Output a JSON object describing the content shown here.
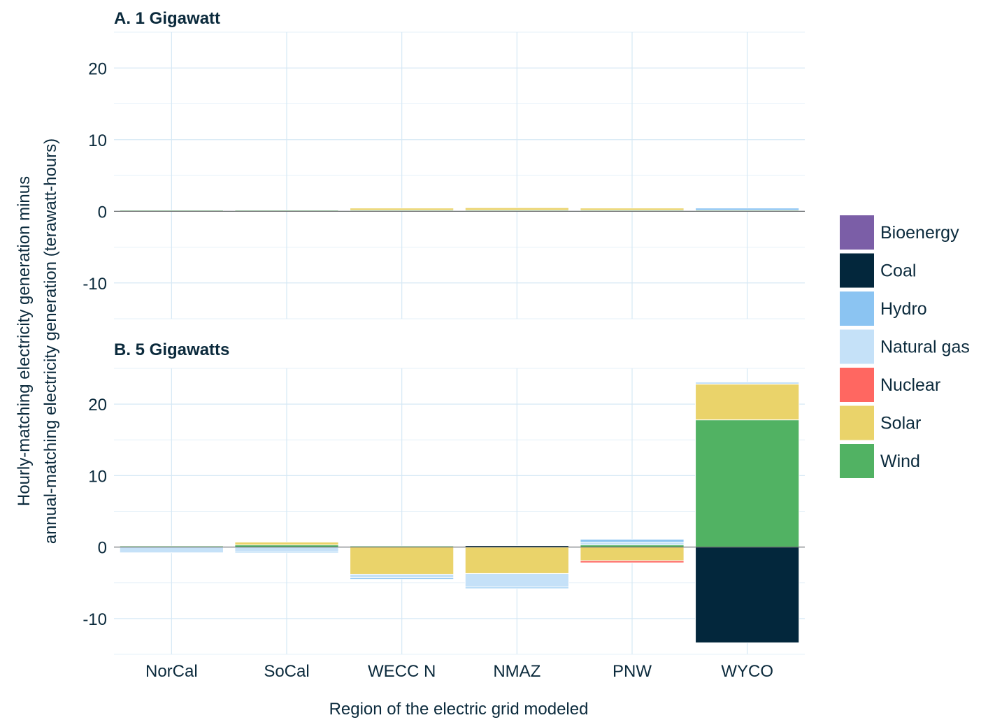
{
  "colors": {
    "Bioenergy": "#7b5ea7",
    "Coal": "#03273c",
    "Hydro": "#8bc4f2",
    "Natural gas": "#c5e1f8",
    "Nuclear": "#ff6761",
    "Solar": "#ead36a",
    "Wind": "#51b263"
  },
  "chart_data": {
    "type": "bar",
    "stacked": true,
    "xlabel": "Region of the electric grid modeled",
    "ylabel": "Hourly-matching electricity generation minus annual-matching electricity generation (terawatt-hours)",
    "ylabel_lines": [
      "Hourly-matching electricity generation minus",
      "annual-matching electricity generation (terawatt-hours)"
    ],
    "categories": [
      "NorCal",
      "SoCal",
      "WECC N",
      "NMAZ",
      "PNW",
      "WYCO"
    ],
    "ylim": [
      -15,
      25
    ],
    "yticks": [
      -10,
      0,
      10,
      20
    ],
    "grid": true,
    "legend": {
      "position": "right",
      "entries": [
        "Bioenergy",
        "Coal",
        "Hydro",
        "Natural gas",
        "Nuclear",
        "Solar",
        "Wind"
      ]
    },
    "panels": [
      {
        "title": "A. 1 Gigawatt",
        "series": [
          {
            "name": "Bioenergy",
            "values": [
              0,
              0,
              0,
              0,
              0,
              0
            ]
          },
          {
            "name": "Coal",
            "values": [
              0,
              0,
              0,
              0,
              0,
              0
            ]
          },
          {
            "name": "Hydro",
            "values": [
              0,
              0,
              0,
              0,
              0,
              0.3
            ]
          },
          {
            "name": "Natural gas",
            "values": [
              0,
              0,
              0,
              0,
              0,
              0
            ]
          },
          {
            "name": "Nuclear",
            "values": [
              0,
              0,
              0,
              0,
              0,
              0
            ]
          },
          {
            "name": "Solar",
            "values": [
              0,
              0,
              0.3,
              0.35,
              0.3,
              0
            ]
          },
          {
            "name": "Wind",
            "values": [
              0.15,
              0.15,
              0.15,
              0.15,
              0.15,
              0.15
            ]
          }
        ]
      },
      {
        "title": "B. 5 Gigawatts",
        "series": [
          {
            "name": "Bioenergy",
            "values": [
              0,
              0,
              0,
              0,
              0,
              0
            ]
          },
          {
            "name": "Coal",
            "values": [
              0,
              0,
              0,
              0.2,
              0,
              -13.4
            ]
          },
          {
            "name": "Hydro",
            "values": [
              0,
              -0.2,
              -0.2,
              -0.2,
              0.4,
              0
            ]
          },
          {
            "name": "Natural gas",
            "values": [
              -0.8,
              -0.6,
              -0.5,
              -1.9,
              0.4,
              0.3
            ]
          },
          {
            "name": "Nuclear",
            "values": [
              0,
              0,
              0,
              0,
              -0.3,
              0
            ]
          },
          {
            "name": "Solar",
            "values": [
              0,
              0.4,
              -3.8,
              -3.7,
              -1.9,
              5
            ]
          },
          {
            "name": "Wind",
            "values": [
              0.15,
              0.3,
              0.15,
              0,
              0.3,
              17.8
            ]
          }
        ]
      }
    ]
  }
}
